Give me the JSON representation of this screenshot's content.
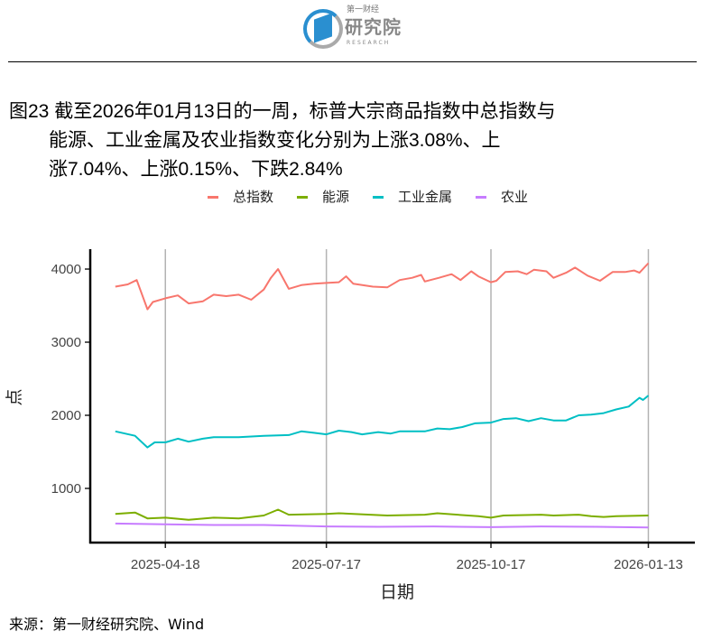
{
  "logo": {
    "line1": "第一财经",
    "line2": "研究院",
    "line3": "RESEARCH"
  },
  "title": {
    "line1": "图23  截至2026年01月13日的一周，标普大宗商品指数中总指数与",
    "line2": "能源、工业金属及农业指数变化分别为上涨3.08%、上",
    "line3": "涨7.04%、上涨0.15%、下跌2.84%"
  },
  "source": "来源：第一财经研究院、Wind",
  "chart_data": {
    "type": "line",
    "xlabel": "日期",
    "ylabel": "点",
    "xlim": [
      "2025-03-07",
      "2026-02-08"
    ],
    "ylim": [
      259,
      4272
    ],
    "xticks": [
      "2025-04-18",
      "2025-07-17",
      "2025-10-17",
      "2026-01-13"
    ],
    "yticks": [
      1000,
      2000,
      3000,
      4000
    ],
    "grid": "vertical-major",
    "legend": "top",
    "series": [
      {
        "name": "总指数",
        "color": "#F8766D",
        "points": [
          [
            "2025-03-21",
            3760
          ],
          [
            "2025-03-28",
            3790
          ],
          [
            "2025-04-02",
            3850
          ],
          [
            "2025-04-08",
            3450
          ],
          [
            "2025-04-11",
            3550
          ],
          [
            "2025-04-18",
            3600
          ],
          [
            "2025-04-25",
            3640
          ],
          [
            "2025-05-01",
            3530
          ],
          [
            "2025-05-09",
            3560
          ],
          [
            "2025-05-15",
            3650
          ],
          [
            "2025-05-22",
            3630
          ],
          [
            "2025-05-29",
            3650
          ],
          [
            "2025-06-05",
            3580
          ],
          [
            "2025-06-12",
            3720
          ],
          [
            "2025-06-16",
            3880
          ],
          [
            "2025-06-20",
            4000
          ],
          [
            "2025-06-26",
            3730
          ],
          [
            "2025-07-03",
            3780
          ],
          [
            "2025-07-10",
            3800
          ],
          [
            "2025-07-17",
            3810
          ],
          [
            "2025-07-24",
            3820
          ],
          [
            "2025-07-28",
            3900
          ],
          [
            "2025-08-01",
            3800
          ],
          [
            "2025-08-12",
            3760
          ],
          [
            "2025-08-20",
            3750
          ],
          [
            "2025-08-27",
            3850
          ],
          [
            "2025-09-03",
            3880
          ],
          [
            "2025-09-08",
            3920
          ],
          [
            "2025-09-10",
            3830
          ],
          [
            "2025-09-18",
            3880
          ],
          [
            "2025-09-25",
            3930
          ],
          [
            "2025-09-30",
            3850
          ],
          [
            "2025-10-06",
            3970
          ],
          [
            "2025-10-10",
            3900
          ],
          [
            "2025-10-17",
            3820
          ],
          [
            "2025-10-20",
            3840
          ],
          [
            "2025-10-25",
            3960
          ],
          [
            "2025-11-01",
            3970
          ],
          [
            "2025-11-06",
            3930
          ],
          [
            "2025-11-10",
            3990
          ],
          [
            "2025-11-17",
            3970
          ],
          [
            "2025-11-21",
            3880
          ],
          [
            "2025-11-28",
            3950
          ],
          [
            "2025-12-03",
            4020
          ],
          [
            "2025-12-10",
            3910
          ],
          [
            "2025-12-17",
            3840
          ],
          [
            "2025-12-24",
            3960
          ],
          [
            "2025-12-31",
            3960
          ],
          [
            "2026-01-05",
            3980
          ],
          [
            "2026-01-08",
            3950
          ],
          [
            "2026-01-13",
            4080
          ]
        ]
      },
      {
        "name": "能源",
        "color": "#7CAE00",
        "points": [
          [
            "2025-03-21",
            650
          ],
          [
            "2025-04-01",
            670
          ],
          [
            "2025-04-08",
            590
          ],
          [
            "2025-04-18",
            600
          ],
          [
            "2025-05-01",
            570
          ],
          [
            "2025-05-15",
            600
          ],
          [
            "2025-05-29",
            590
          ],
          [
            "2025-06-12",
            630
          ],
          [
            "2025-06-20",
            710
          ],
          [
            "2025-06-26",
            640
          ],
          [
            "2025-07-17",
            650
          ],
          [
            "2025-07-24",
            660
          ],
          [
            "2025-08-20",
            630
          ],
          [
            "2025-09-10",
            640
          ],
          [
            "2025-09-17",
            660
          ],
          [
            "2025-10-10",
            620
          ],
          [
            "2025-10-17",
            600
          ],
          [
            "2025-10-24",
            630
          ],
          [
            "2025-11-14",
            640
          ],
          [
            "2025-11-21",
            630
          ],
          [
            "2025-12-05",
            640
          ],
          [
            "2025-12-12",
            620
          ],
          [
            "2025-12-19",
            610
          ],
          [
            "2025-12-26",
            620
          ],
          [
            "2026-01-13",
            630
          ]
        ]
      },
      {
        "name": "工业金属",
        "color": "#00BFC4",
        "points": [
          [
            "2025-03-21",
            1780
          ],
          [
            "2025-04-01",
            1720
          ],
          [
            "2025-04-08",
            1560
          ],
          [
            "2025-04-12",
            1630
          ],
          [
            "2025-04-18",
            1630
          ],
          [
            "2025-04-25",
            1680
          ],
          [
            "2025-05-01",
            1640
          ],
          [
            "2025-05-09",
            1680
          ],
          [
            "2025-05-15",
            1700
          ],
          [
            "2025-05-29",
            1700
          ],
          [
            "2025-06-12",
            1720
          ],
          [
            "2025-06-26",
            1730
          ],
          [
            "2025-07-03",
            1780
          ],
          [
            "2025-07-10",
            1760
          ],
          [
            "2025-07-17",
            1740
          ],
          [
            "2025-07-24",
            1790
          ],
          [
            "2025-07-31",
            1770
          ],
          [
            "2025-08-06",
            1740
          ],
          [
            "2025-08-15",
            1770
          ],
          [
            "2025-08-22",
            1750
          ],
          [
            "2025-08-27",
            1780
          ],
          [
            "2025-09-10",
            1780
          ],
          [
            "2025-09-17",
            1820
          ],
          [
            "2025-09-24",
            1810
          ],
          [
            "2025-10-01",
            1840
          ],
          [
            "2025-10-08",
            1890
          ],
          [
            "2025-10-17",
            1900
          ],
          [
            "2025-10-24",
            1950
          ],
          [
            "2025-10-31",
            1960
          ],
          [
            "2025-11-07",
            1920
          ],
          [
            "2025-11-14",
            1960
          ],
          [
            "2025-11-21",
            1930
          ],
          [
            "2025-11-28",
            1930
          ],
          [
            "2025-12-05",
            2000
          ],
          [
            "2025-12-12",
            2010
          ],
          [
            "2025-12-19",
            2030
          ],
          [
            "2025-12-26",
            2080
          ],
          [
            "2026-01-02",
            2120
          ],
          [
            "2026-01-08",
            2240
          ],
          [
            "2026-01-10",
            2210
          ],
          [
            "2026-01-13",
            2270
          ]
        ]
      },
      {
        "name": "农业",
        "color": "#C77CFF",
        "points": [
          [
            "2025-03-21",
            520
          ],
          [
            "2025-04-18",
            510
          ],
          [
            "2025-05-15",
            500
          ],
          [
            "2025-06-12",
            500
          ],
          [
            "2025-07-17",
            480
          ],
          [
            "2025-08-15",
            475
          ],
          [
            "2025-09-15",
            480
          ],
          [
            "2025-10-17",
            470
          ],
          [
            "2025-11-14",
            480
          ],
          [
            "2025-12-15",
            475
          ],
          [
            "2026-01-13",
            465
          ]
        ]
      }
    ]
  }
}
